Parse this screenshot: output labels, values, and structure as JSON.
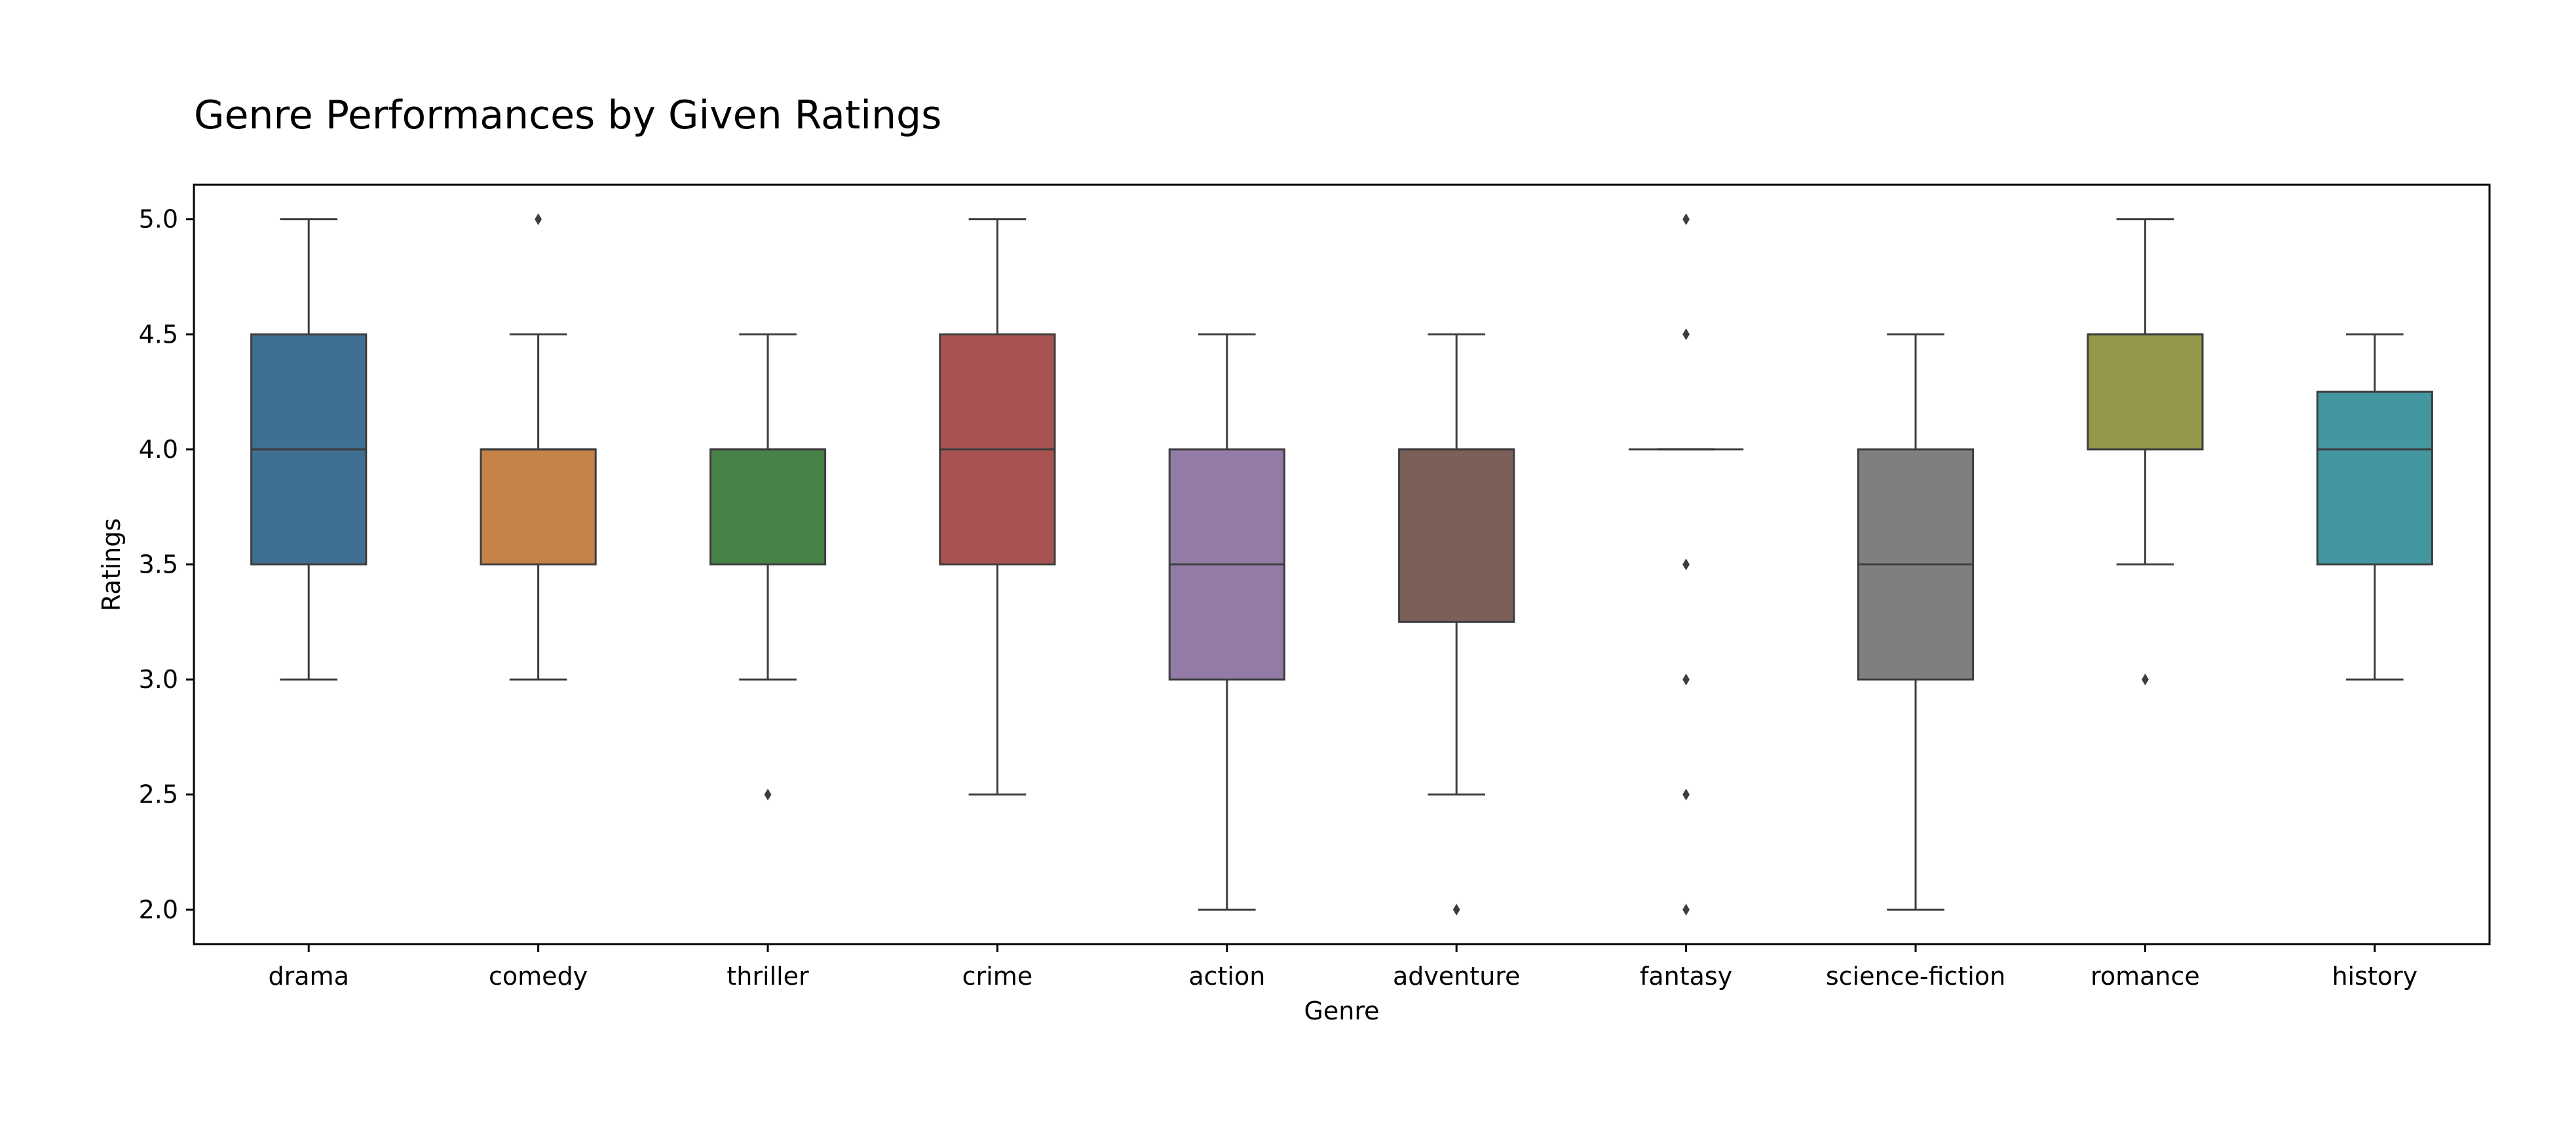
{
  "chart_data": {
    "type": "box",
    "title": "Genre Performances by Given Ratings",
    "xlabel": "Genre",
    "ylabel": "Ratings",
    "ylim": [
      1.85,
      5.15
    ],
    "yticks": [
      "2.0",
      "2.5",
      "3.0",
      "3.5",
      "4.0",
      "4.5",
      "5.0"
    ],
    "ytick_values": [
      2.0,
      2.5,
      3.0,
      3.5,
      4.0,
      4.5,
      5.0
    ],
    "grid": false,
    "legend": "none",
    "categories": [
      "drama",
      "comedy",
      "thriller",
      "crime",
      "action",
      "adventure",
      "fantasy",
      "science-fiction",
      "romance",
      "history"
    ],
    "boxes": [
      {
        "category": "drama",
        "whisker_low": 3.0,
        "q1": 3.5,
        "median": 4.0,
        "q3": 4.5,
        "whisker_high": 5.0,
        "outliers": [],
        "color": "#3f6f91"
      },
      {
        "category": "comedy",
        "whisker_low": 3.0,
        "q1": 3.5,
        "median": 4.0,
        "q3": 4.0,
        "whisker_high": 4.5,
        "outliers": [
          5.0
        ],
        "color": "#c58249"
      },
      {
        "category": "thriller",
        "whisker_low": 3.0,
        "q1": 3.5,
        "median": 4.0,
        "q3": 4.0,
        "whisker_high": 4.5,
        "outliers": [
          2.5
        ],
        "color": "#478247"
      },
      {
        "category": "crime",
        "whisker_low": 2.5,
        "q1": 3.5,
        "median": 4.0,
        "q3": 4.5,
        "whisker_high": 5.0,
        "outliers": [],
        "color": "#a85352"
      },
      {
        "category": "action",
        "whisker_low": 2.0,
        "q1": 3.0,
        "median": 3.5,
        "q3": 4.0,
        "whisker_high": 4.5,
        "outliers": [],
        "color": "#937ba7"
      },
      {
        "category": "adventure",
        "whisker_low": 2.5,
        "q1": 3.25,
        "median": 4.0,
        "q3": 4.0,
        "whisker_high": 4.5,
        "outliers": [
          2.0
        ],
        "color": "#7b6059"
      },
      {
        "category": "fantasy",
        "whisker_low": 4.0,
        "q1": 4.0,
        "median": 4.0,
        "q3": 4.0,
        "whisker_high": 4.0,
        "outliers": [
          5.0,
          4.5,
          3.5,
          3.0,
          2.5,
          2.0
        ],
        "color": "#c883b0"
      },
      {
        "category": "science-fiction",
        "whisker_low": 2.0,
        "q1": 3.0,
        "median": 3.5,
        "q3": 4.0,
        "whisker_high": 4.5,
        "outliers": [],
        "color": "#7f7f7f"
      },
      {
        "category": "romance",
        "whisker_low": 3.5,
        "q1": 4.0,
        "median": 4.5,
        "q3": 4.5,
        "whisker_high": 5.0,
        "outliers": [
          3.0
        ],
        "color": "#949648"
      },
      {
        "category": "history",
        "whisker_low": 3.0,
        "q1": 3.5,
        "median": 4.0,
        "q3": 4.25,
        "whisker_high": 4.5,
        "outliers": [],
        "color": "#4297a1"
      }
    ]
  }
}
